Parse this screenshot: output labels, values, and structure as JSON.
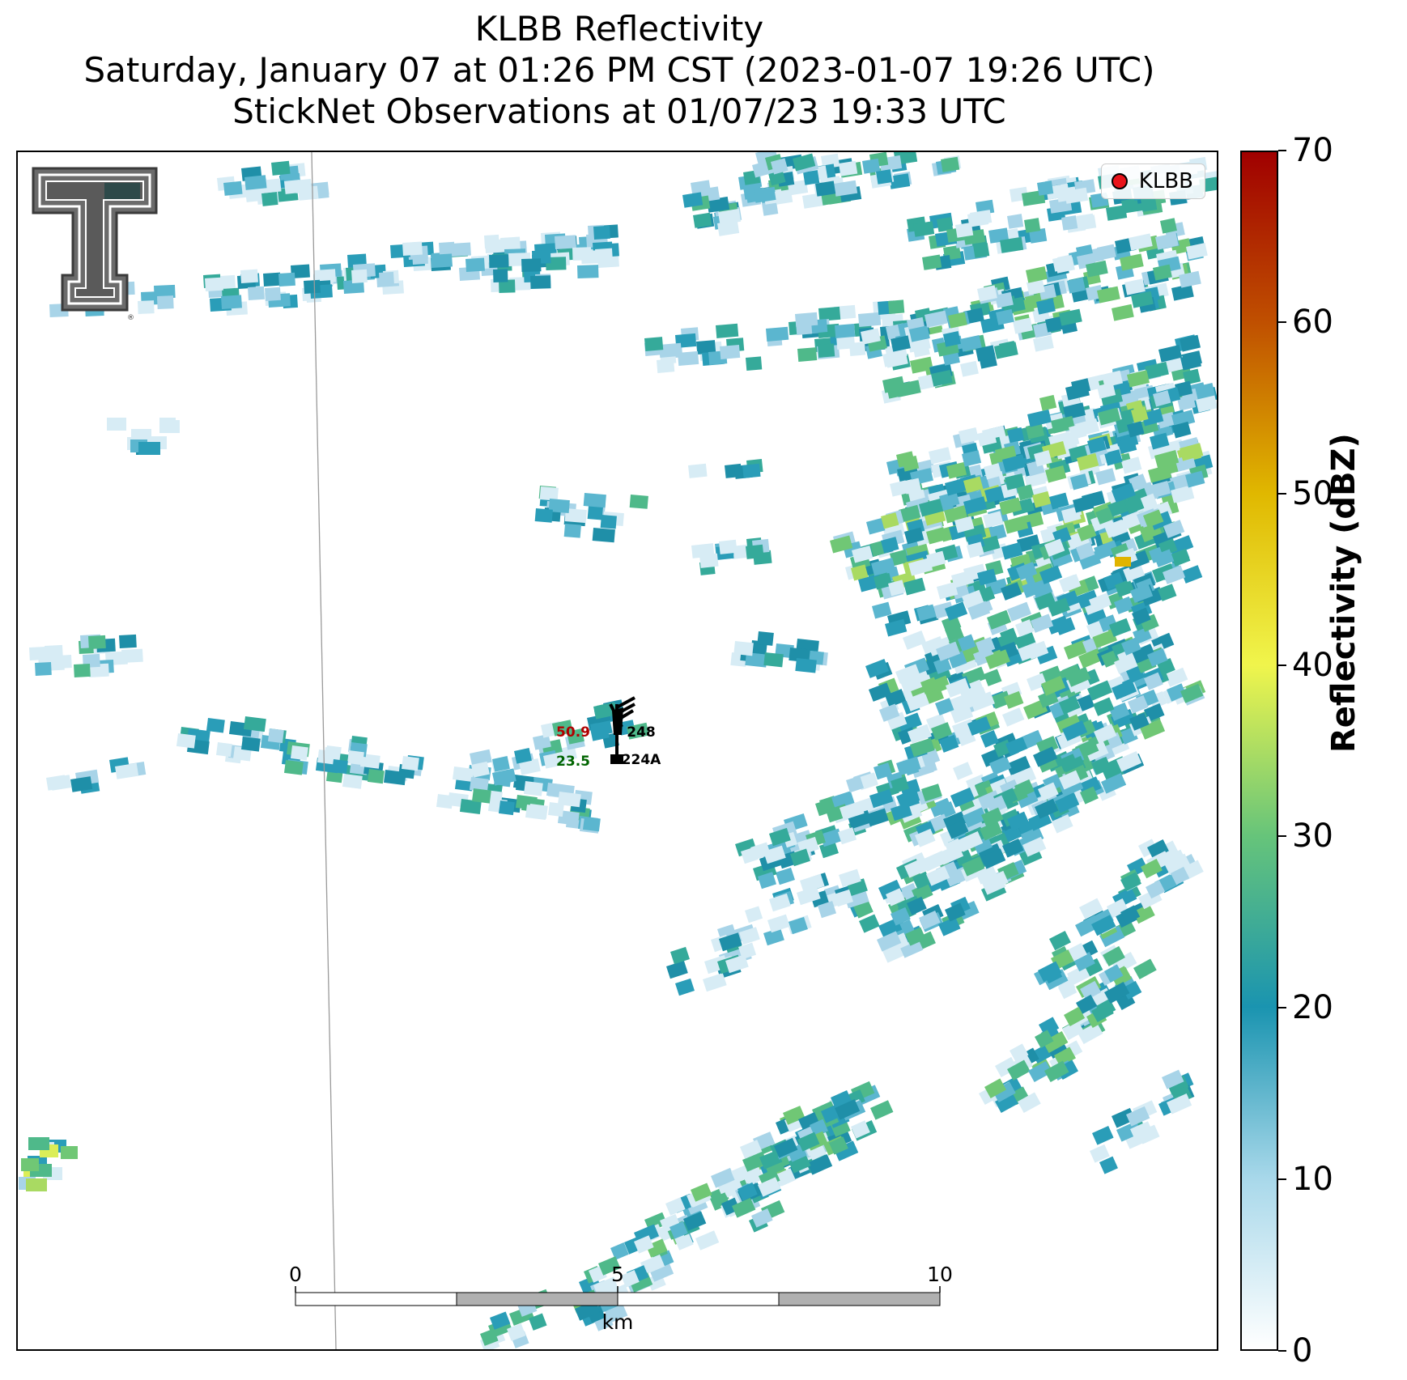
{
  "titles": {
    "line1": "KLBB Reflectivity",
    "line2": "Saturday, January 07 at 01:26 PM CST (2023-01-07 19:26 UTC)",
    "line3": "StickNet Observations at 01/07/23 19:33 UTC"
  },
  "legend": {
    "label": "KLBB",
    "marker_color": "#e8141b"
  },
  "station": {
    "temperature": "50.9",
    "temperature_color": "#b00000",
    "dewpoint": "23.5",
    "dewpoint_color": "#006400",
    "pressure_code": "248",
    "station_id": "224A"
  },
  "scale_bar": {
    "labels": [
      "0",
      "5",
      "10"
    ],
    "unit": "km"
  },
  "colorbar": {
    "title": "Reflectivity (dBZ)",
    "range": [
      0,
      70
    ],
    "ticks": [
      "0",
      "10",
      "20",
      "30",
      "40",
      "50",
      "60",
      "70"
    ],
    "colors": [
      "#ffffff",
      "#a8d8ea",
      "#1a94b0",
      "#66c47a",
      "#f0f54c",
      "#e0b800",
      "#c05000",
      "#a00000"
    ]
  },
  "logo": {
    "name": "Texas Tech Double T",
    "color": "#555555"
  }
}
